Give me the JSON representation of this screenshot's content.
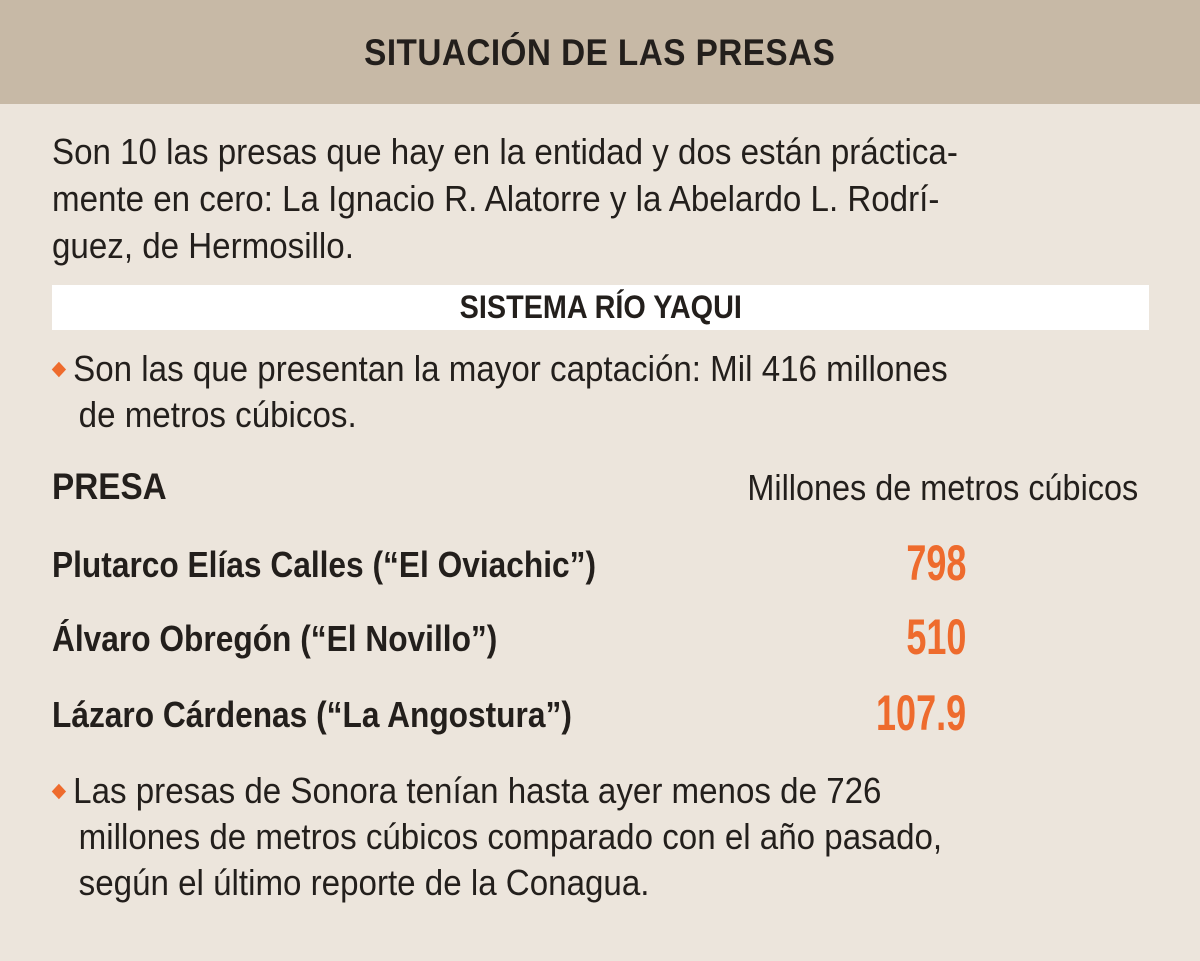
{
  "header": {
    "title": "SITUACIÓN DE LAS PRESAS"
  },
  "intro": {
    "lines": [
      "Son 10 las presas que hay en la entidad y dos están práctica-",
      "mente en cero: La Ignacio R. Alatorre y la Abelardo L. Rodrí-",
      "guez, de Hermosillo."
    ]
  },
  "section": {
    "title": "SISTEMA RÍO YAQUI"
  },
  "bullet1": {
    "lines": [
      "Son las que presentan la mayor captación: Mil 416 millones",
      "de metros cúbicos."
    ]
  },
  "table": {
    "column_left": "PRESA",
    "column_right": "Millones de metros cúbicos",
    "rows": [
      {
        "name": "Plutarco Elías Calles (“El Oviachic”)",
        "value": "798"
      },
      {
        "name": "Álvaro Obregón (“El Novillo”)",
        "value": "510"
      },
      {
        "name": "Lázaro Cárdenas (“La Angostura”)",
        "value": "107.9"
      }
    ]
  },
  "bullet2": {
    "lines": [
      "Las presas de Sonora tenían hasta ayer menos de 726",
      "millones de metros cúbicos comparado con el año pasado,",
      "según el último reporte de la Conagua."
    ]
  },
  "colors": {
    "header_bg": "#c7b9a6",
    "page_bg": "#ece5dc",
    "accent": "#ee6b2d",
    "text": "#231f1c"
  }
}
